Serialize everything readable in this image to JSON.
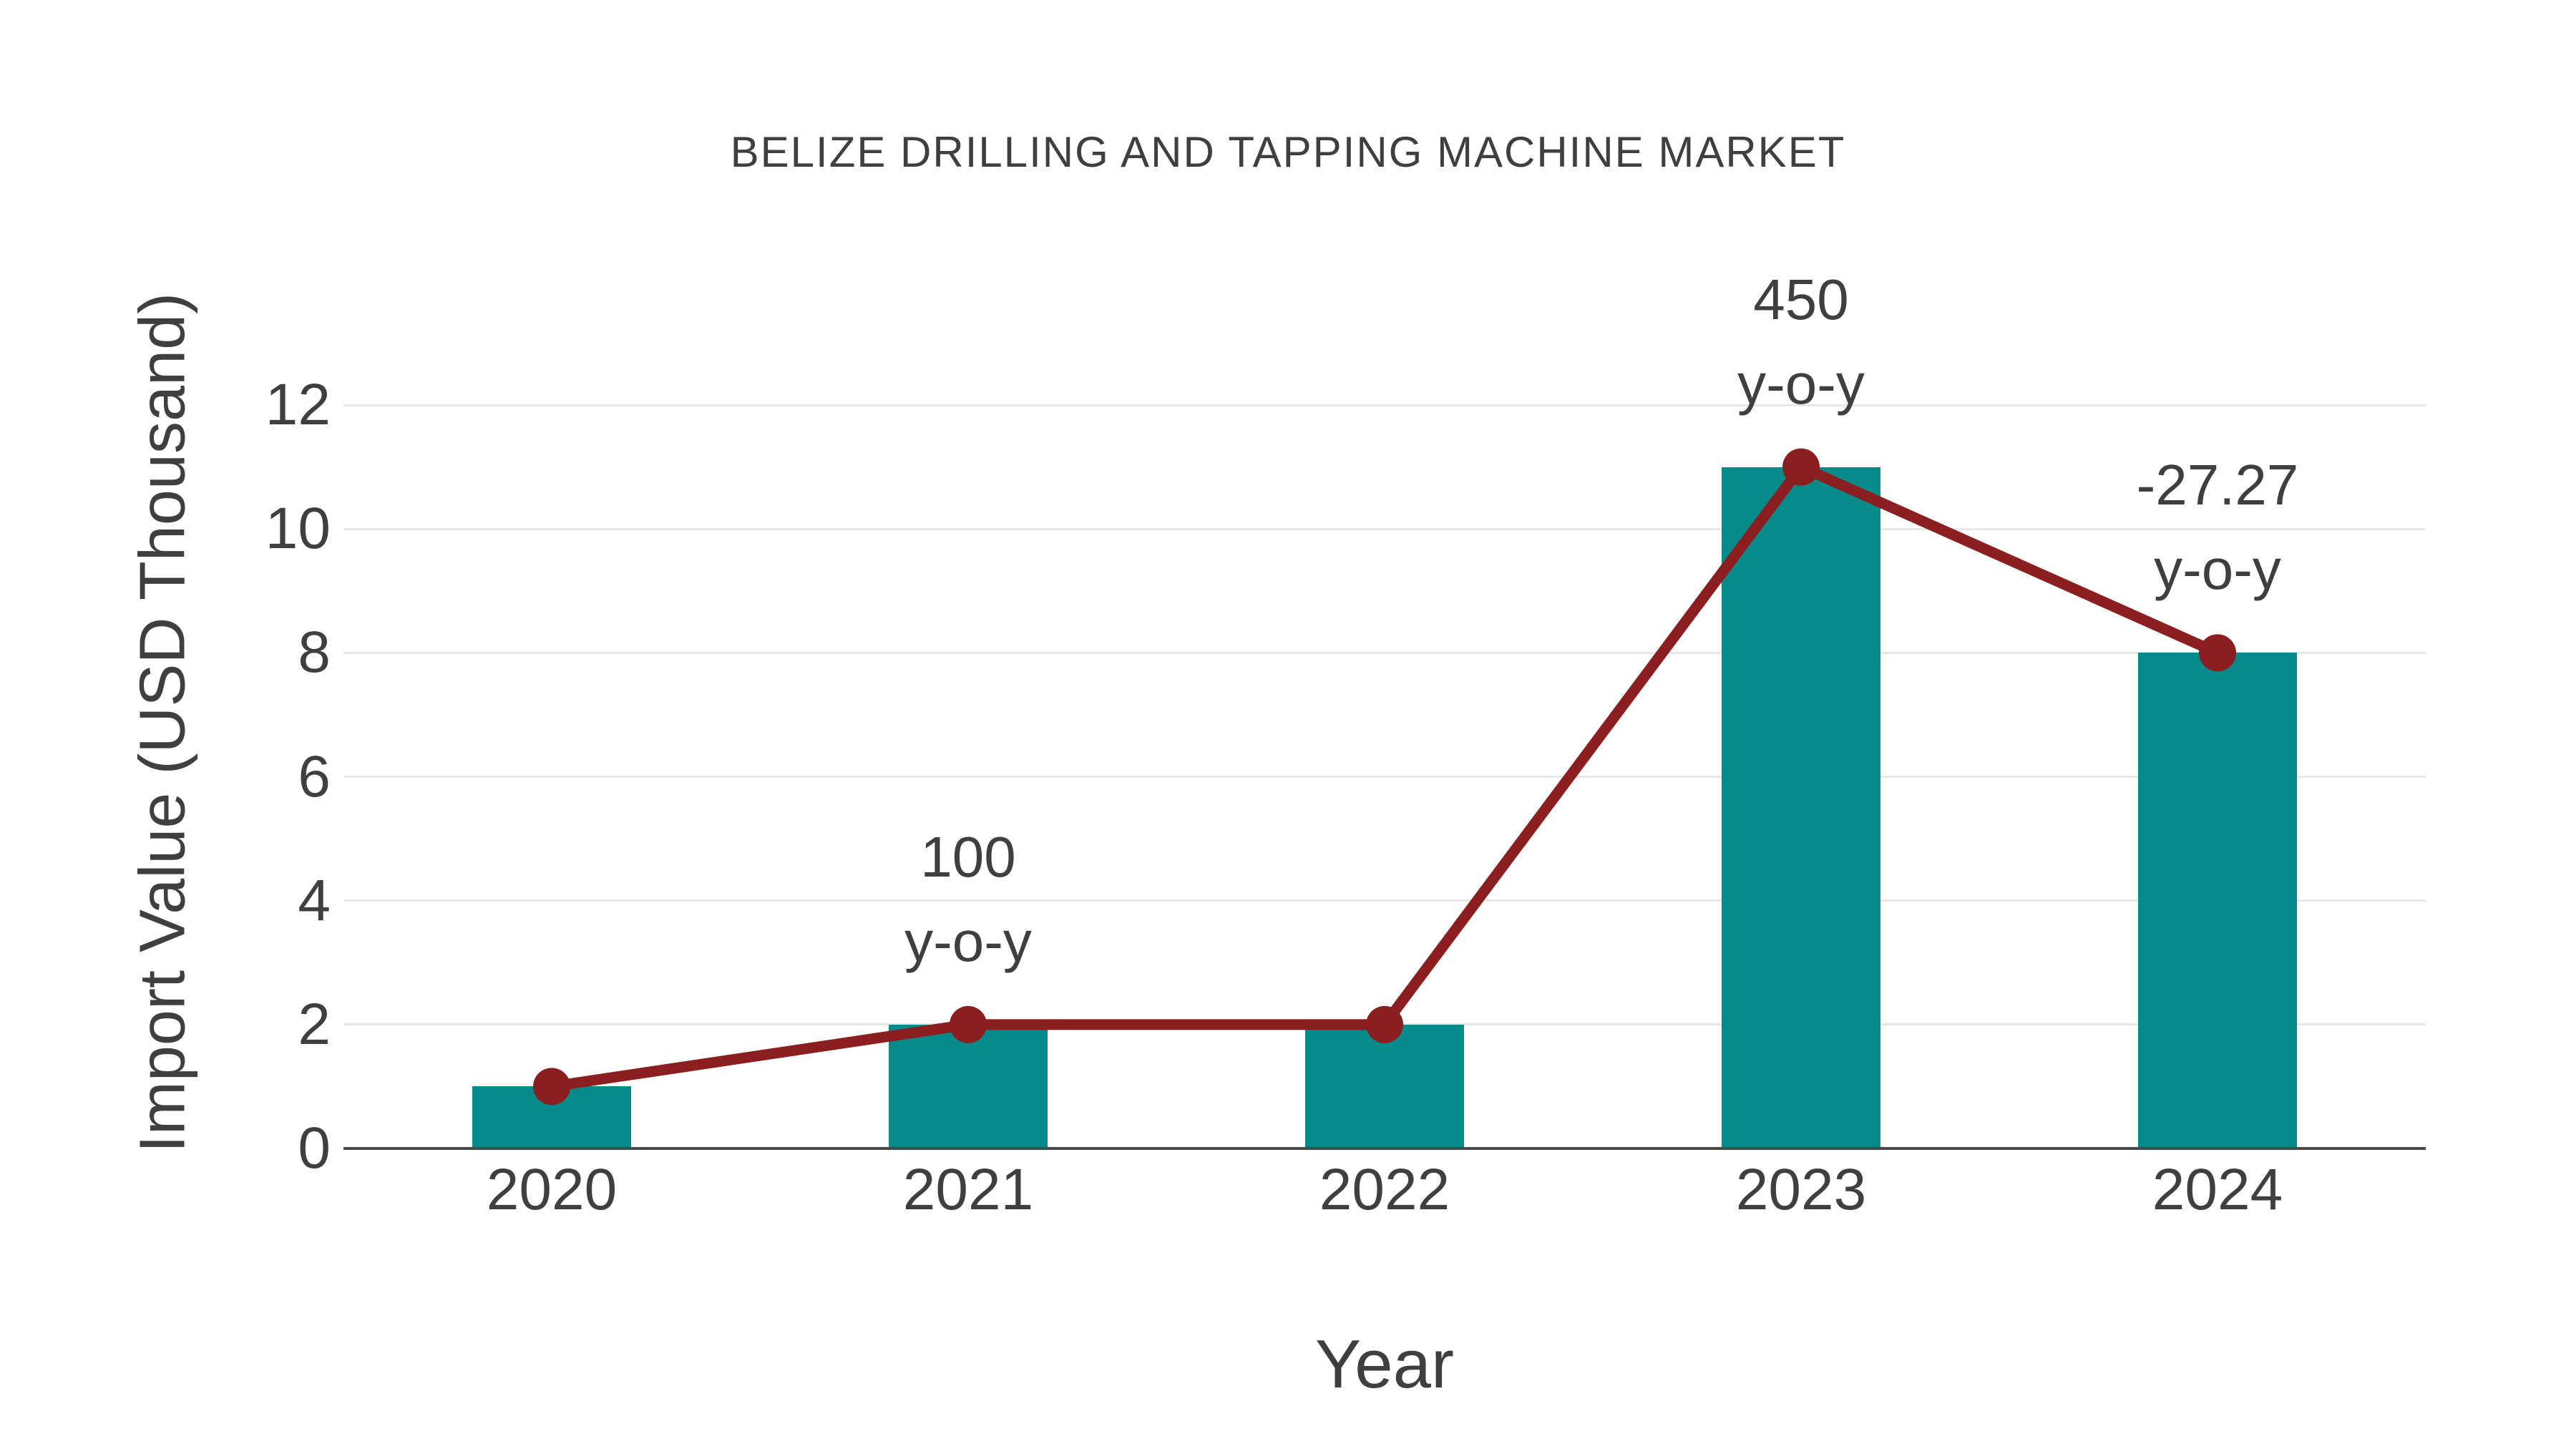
{
  "page": {
    "background": "#FFFFFF"
  },
  "chart_data": {
    "type": "bar",
    "title": "BELIZE DRILLING AND TAPPING MACHINE MARKET",
    "xlabel": "Year",
    "ylabel": "Import Value (USD Thousand)",
    "categories": [
      "2020",
      "2021",
      "2022",
      "2023",
      "2024"
    ],
    "series": [
      {
        "name": "Import Value bars",
        "type": "bar",
        "values": [
          1,
          2,
          2,
          11,
          8
        ]
      },
      {
        "name": "Import Value trend line",
        "type": "line",
        "values": [
          1,
          2,
          2,
          11,
          8
        ]
      }
    ],
    "ylim": [
      0,
      12
    ],
    "yticks": [
      0,
      2,
      4,
      6,
      8,
      10,
      12
    ],
    "grid": true,
    "legend": "none",
    "annotations": [
      {
        "category": "2021",
        "lines": [
          "100",
          "y-o-y"
        ]
      },
      {
        "category": "2023",
        "lines": [
          "450",
          "y-o-y"
        ]
      },
      {
        "category": "2024",
        "lines": [
          "-27.27",
          "y-o-y"
        ]
      }
    ],
    "colors": {
      "bar": "#068A8A",
      "line": "#8B1E1E",
      "marker": "#8B1E1E",
      "grid": "#E7E7E7",
      "axis_line": "#4A4A4A",
      "text": "#3F3F3F"
    }
  }
}
